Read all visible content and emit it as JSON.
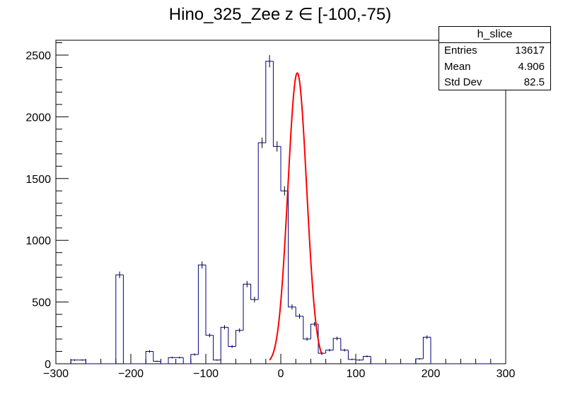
{
  "title": "Hino_325_Zee z  ∈ [-100,-75)",
  "stats": {
    "name": "h_slice",
    "rows": [
      {
        "label": "Entries",
        "value": "13617"
      },
      {
        "label": "Mean",
        "value": "4.906"
      },
      {
        "label": "Std Dev",
        "value": "82.5"
      }
    ]
  },
  "chart_data": {
    "type": "bar",
    "title": "Hino_325_Zee z  ∈ [-100,-75)",
    "xlabel": "",
    "ylabel": "",
    "xlim": [
      -300,
      300
    ],
    "ylim": [
      0,
      2620
    ],
    "x_ticks": [
      -300,
      -200,
      -100,
      0,
      100,
      200,
      300
    ],
    "y_ticks": [
      0,
      500,
      1000,
      1500,
      2000,
      2500
    ],
    "grid": false,
    "line_color": "#000080",
    "fit_color": "#ff0000",
    "bin_width": 10,
    "histogram": {
      "name": "h_slice",
      "bin_low_edges": [
        -280,
        -270,
        -260,
        -250,
        -240,
        -230,
        -220,
        -210,
        -200,
        -190,
        -180,
        -170,
        -160,
        -150,
        -140,
        -130,
        -120,
        -110,
        -100,
        -90,
        -80,
        -70,
        -60,
        -50,
        -40,
        -30,
        -20,
        -10,
        0,
        10,
        20,
        30,
        40,
        50,
        60,
        70,
        80,
        90,
        100,
        110,
        120,
        130,
        140,
        150,
        160,
        170,
        180,
        190,
        200,
        210,
        220,
        230,
        240,
        250,
        260,
        270
      ],
      "values": [
        30,
        30,
        0,
        0,
        0,
        0,
        720,
        0,
        0,
        0,
        100,
        20,
        0,
        50,
        50,
        0,
        75,
        800,
        230,
        30,
        295,
        140,
        270,
        645,
        520,
        1790,
        2450,
        1760,
        1400,
        460,
        385,
        200,
        320,
        85,
        110,
        205,
        110,
        35,
        30,
        60,
        0,
        0,
        0,
        0,
        0,
        0,
        40,
        215,
        0,
        0,
        0,
        0,
        0,
        0,
        0,
        0
      ]
    },
    "fit": {
      "type": "gaussian",
      "x_range": [
        -15,
        55
      ],
      "amplitude": 2355,
      "mean": 22,
      "sigma": 12.5
    }
  }
}
